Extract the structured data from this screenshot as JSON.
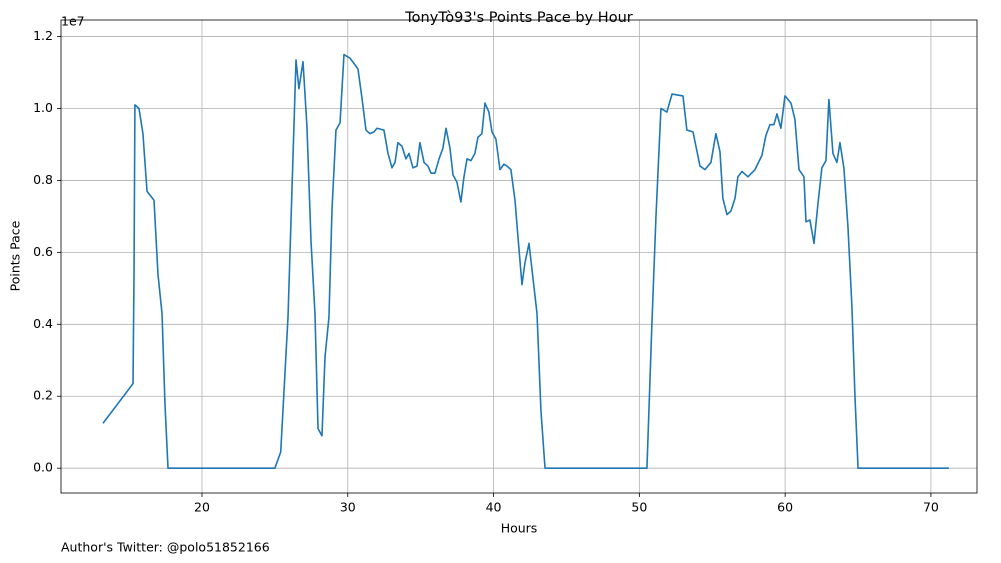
{
  "chart_data": {
    "type": "line",
    "title": "TonyTò93's Points Pace by Hour",
    "x_label": "Hours",
    "y_label": "Points Pace",
    "y_offset_label": "1e7",
    "footer": "Author's Twitter: @polo51852166",
    "grid": true,
    "x": [
      13.21,
      15.27,
      15.34,
      15.4,
      15.68,
      15.95,
      16.23,
      16.71,
      16.98,
      17.26,
      17.46,
      17.67,
      25.0,
      25.4,
      25.9,
      26.45,
      26.65,
      26.93,
      27.2,
      27.48,
      27.75,
      27.96,
      28.23,
      28.44,
      28.71,
      28.92,
      29.19,
      29.47,
      29.74,
      30.15,
      30.43,
      30.7,
      30.97,
      31.25,
      31.52,
      31.8,
      32.0,
      32.48,
      32.76,
      33.03,
      33.24,
      33.44,
      33.72,
      33.99,
      34.2,
      34.47,
      34.75,
      34.95,
      35.23,
      35.5,
      35.71,
      35.98,
      36.26,
      36.53,
      36.74,
      37.01,
      37.22,
      37.49,
      37.76,
      37.97,
      38.18,
      38.45,
      38.72,
      38.93,
      39.2,
      39.41,
      39.68,
      39.89,
      40.16,
      40.44,
      40.71,
      40.92,
      41.19,
      41.47,
      41.67,
      41.95,
      42.15,
      42.43,
      42.98,
      43.25,
      43.53,
      50.52,
      50.86,
      51.14,
      51.48,
      51.89,
      52.24,
      52.99,
      53.26,
      53.68,
      54.16,
      54.5,
      54.91,
      55.25,
      55.53,
      55.73,
      56.01,
      56.28,
      56.56,
      56.76,
      57.04,
      57.45,
      57.93,
      58.41,
      58.68,
      58.96,
      59.23,
      59.44,
      59.71,
      59.99,
      60.4,
      60.67,
      60.95,
      61.29,
      61.43,
      61.7,
      61.98,
      62.25,
      62.52,
      62.8,
      63.0,
      63.28,
      63.55,
      63.76,
      64.03,
      64.31,
      64.58,
      64.79,
      65.0,
      71.23
    ],
    "series": [
      {
        "name": "Points Pace",
        "color": "#1f77b4",
        "values": [
          1250000,
          2350000,
          5500000,
          10100000,
          10000000,
          9300000,
          7700000,
          7450000,
          5400000,
          4300000,
          1800000,
          0,
          0,
          450000,
          4200000,
          11350000,
          10550000,
          11300000,
          9500000,
          6300000,
          4300000,
          1100000,
          900000,
          3100000,
          4200000,
          7200000,
          9400000,
          9600000,
          11500000,
          11400000,
          11250000,
          11100000,
          10300000,
          9400000,
          9300000,
          9350000,
          9450000,
          9400000,
          8750000,
          8350000,
          8500000,
          9050000,
          8950000,
          8600000,
          8750000,
          8350000,
          8400000,
          9050000,
          8500000,
          8400000,
          8200000,
          8200000,
          8600000,
          8900000,
          9450000,
          8900000,
          8150000,
          7950000,
          7400000,
          8100000,
          8600000,
          8550000,
          8750000,
          9200000,
          9300000,
          10150000,
          9900000,
          9350000,
          9150000,
          8300000,
          8450000,
          8400000,
          8300000,
          7450000,
          6450000,
          5100000,
          5700000,
          6250000,
          4300000,
          1600000,
          0,
          0,
          4000000,
          7000000,
          10000000,
          9900000,
          10400000,
          10350000,
          9400000,
          9350000,
          8400000,
          8300000,
          8500000,
          9300000,
          8800000,
          7500000,
          7050000,
          7150000,
          7500000,
          8100000,
          8250000,
          8100000,
          8300000,
          8700000,
          9250000,
          9550000,
          9550000,
          9850000,
          9450000,
          10350000,
          10150000,
          9700000,
          8300000,
          8100000,
          6850000,
          6900000,
          6250000,
          7350000,
          8350000,
          8550000,
          10250000,
          8750000,
          8500000,
          9050000,
          8350000,
          6700000,
          4500000,
          2000000,
          0,
          0
        ]
      }
    ],
    "xlim": [
      10.33,
      73.16
    ],
    "xticks": [
      20,
      30,
      40,
      50,
      60,
      70
    ],
    "ylim": [
      -690000,
      12460000
    ],
    "yticks": [
      {
        "value": 0,
        "label": "0.0"
      },
      {
        "value": 2000000,
        "label": "0.2"
      },
      {
        "value": 4000000,
        "label": "0.4"
      },
      {
        "value": 6000000,
        "label": "0.6"
      },
      {
        "value": 8000000,
        "label": "0.8"
      },
      {
        "value": 10000000,
        "label": "1.0"
      },
      {
        "value": 12000000,
        "label": "1.2"
      }
    ]
  }
}
